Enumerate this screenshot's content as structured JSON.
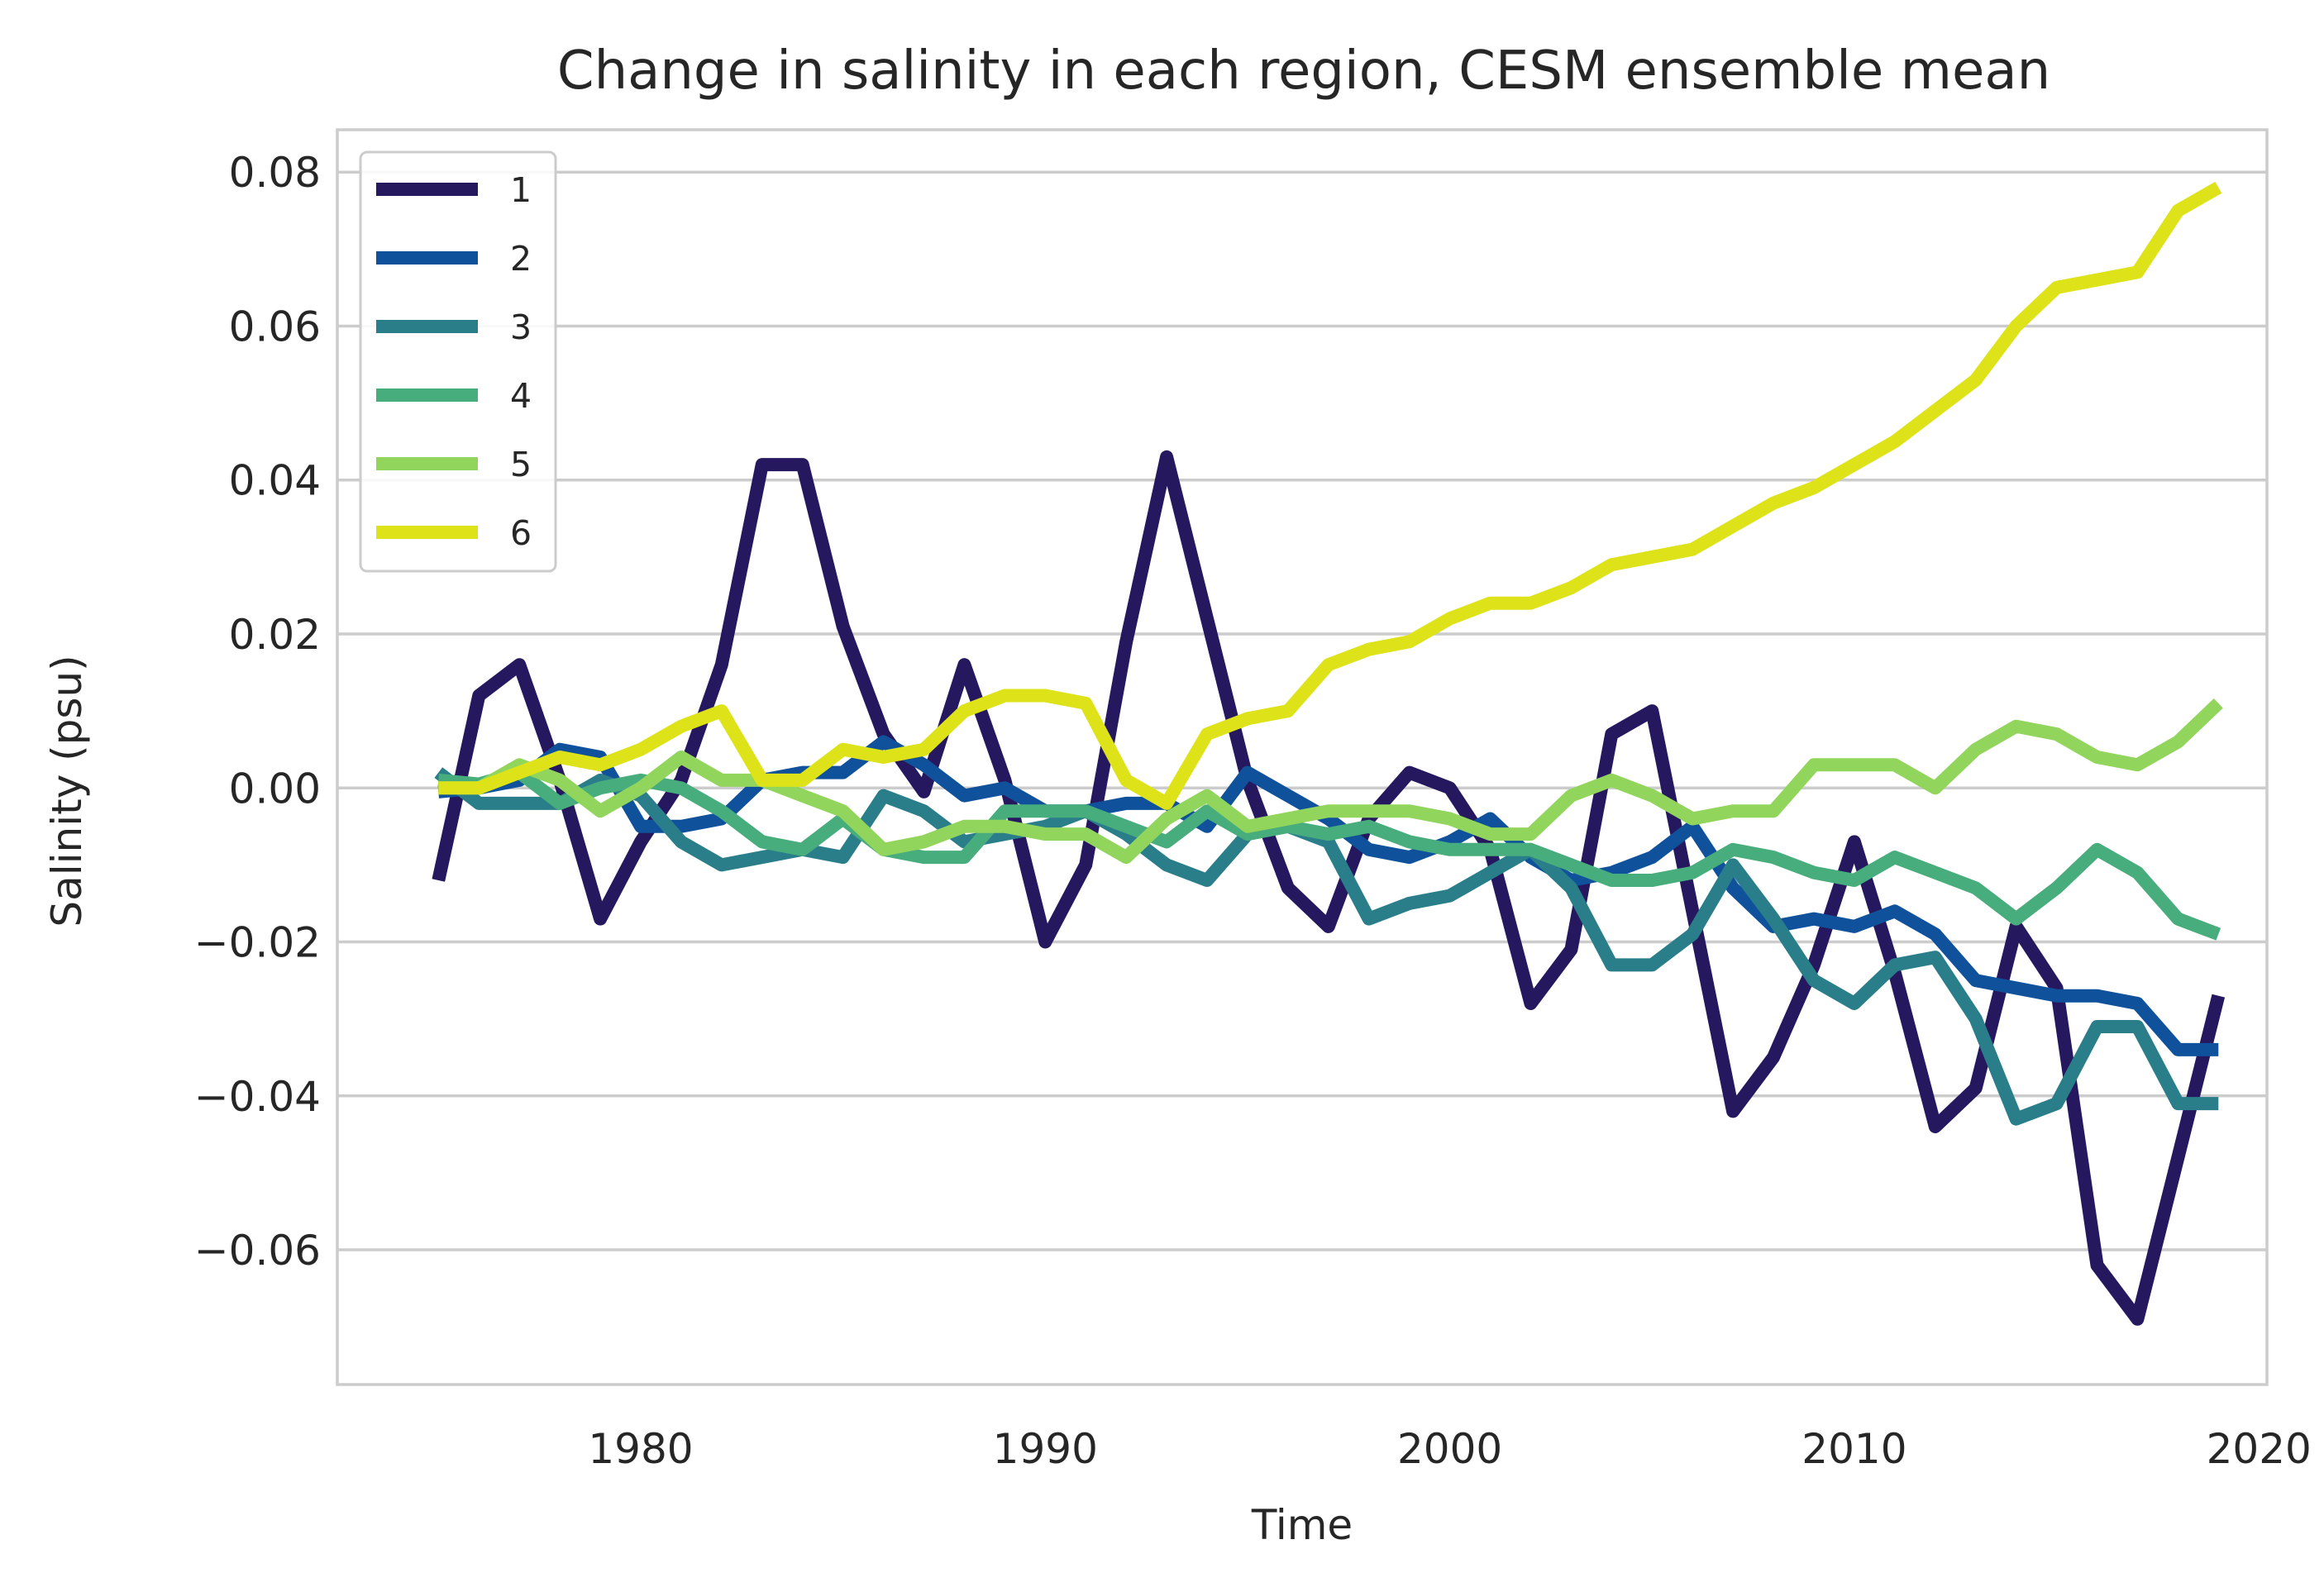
{
  "chart_data": {
    "type": "line",
    "title": "Change in salinity in each region, CESM ensemble mean",
    "xlabel": "Time",
    "ylabel": "Salinity (psu)",
    "xlim": [
      1972.5,
      2020.2
    ],
    "ylim": [
      -0.0775,
      0.0855
    ],
    "xticks": [
      1980,
      1990,
      2000,
      2010,
      2020
    ],
    "xtick_labels": [
      "1980",
      "1990",
      "2000",
      "2010",
      "2020"
    ],
    "yticks": [
      -0.06,
      -0.04,
      -0.02,
      0.0,
      0.02,
      0.04,
      0.06,
      0.08
    ],
    "ytick_labels": [
      "−0.06",
      "−0.04",
      "−0.02",
      "0.00",
      "0.02",
      "0.04",
      "0.06",
      "0.08"
    ],
    "grid": "horizontal",
    "legend_position": "top-left",
    "x": [
      1975,
      1976,
      1977,
      1978,
      1979,
      1980,
      1981,
      1982,
      1983,
      1984,
      1985,
      1986,
      1987,
      1988,
      1989,
      1990,
      1991,
      1992,
      1993,
      1994,
      1995,
      1996,
      1997,
      1998,
      1999,
      2000,
      2001,
      2002,
      2003,
      2004,
      2005,
      2006,
      2007,
      2008,
      2009,
      2010,
      2011,
      2012,
      2013,
      2014,
      2015,
      2016,
      2017,
      2018,
      2019
    ],
    "series": [
      {
        "name": "1",
        "color": "#26185f",
        "values": [
          -0.012,
          0.012,
          0.016,
          0.001,
          -0.017,
          -0.007,
          0.001,
          0.016,
          0.042,
          0.042,
          0.021,
          0.007,
          -0.0005,
          0.016,
          0.001,
          -0.02,
          -0.01,
          0.019,
          0.043,
          0.022,
          0.001,
          -0.013,
          -0.018,
          -0.004,
          0.002,
          0.0,
          -0.008,
          -0.028,
          -0.021,
          0.007,
          0.01,
          -0.016,
          -0.042,
          -0.035,
          -0.023,
          -0.007,
          -0.024,
          -0.044,
          -0.039,
          -0.018,
          -0.026,
          -0.062,
          -0.069,
          -0.048,
          -0.027
        ]
      },
      {
        "name": "2",
        "color": "#0f529b",
        "values": [
          -0.0005,
          0.0,
          0.001,
          0.005,
          0.004,
          -0.005,
          -0.005,
          -0.004,
          0.001,
          0.002,
          0.002,
          0.006,
          0.003,
          -0.001,
          0.0,
          -0.003,
          -0.003,
          -0.002,
          -0.002,
          -0.005,
          0.002,
          -0.001,
          -0.004,
          -0.008,
          -0.009,
          -0.007,
          -0.004,
          -0.009,
          -0.012,
          -0.011,
          -0.009,
          -0.005,
          -0.013,
          -0.018,
          -0.017,
          -0.018,
          -0.016,
          -0.019,
          -0.025,
          -0.026,
          -0.027,
          -0.027,
          -0.028,
          -0.034,
          -0.034
        ]
      },
      {
        "name": "3",
        "color": "#2a7e8a",
        "values": [
          0.002,
          -0.002,
          -0.002,
          -0.002,
          0.001,
          -0.001,
          -0.007,
          -0.01,
          -0.009,
          -0.008,
          -0.009,
          -0.001,
          -0.003,
          -0.007,
          -0.006,
          -0.005,
          -0.003,
          -0.006,
          -0.01,
          -0.012,
          -0.006,
          -0.005,
          -0.007,
          -0.017,
          -0.015,
          -0.014,
          -0.011,
          -0.008,
          -0.013,
          -0.023,
          -0.023,
          -0.019,
          -0.01,
          -0.017,
          -0.025,
          -0.028,
          -0.023,
          -0.022,
          -0.03,
          -0.043,
          -0.041,
          -0.031,
          -0.031,
          -0.041,
          -0.041
        ]
      },
      {
        "name": "4",
        "color": "#48ad7c",
        "values": [
          0.001,
          0.0005,
          0.002,
          -0.002,
          0.0,
          0.001,
          0.0,
          -0.003,
          -0.007,
          -0.008,
          -0.004,
          -0.008,
          -0.009,
          -0.009,
          -0.003,
          -0.003,
          -0.003,
          -0.005,
          -0.007,
          -0.003,
          -0.006,
          -0.005,
          -0.006,
          -0.005,
          -0.007,
          -0.008,
          -0.008,
          -0.008,
          -0.01,
          -0.012,
          -0.012,
          -0.011,
          -0.008,
          -0.009,
          -0.011,
          -0.012,
          -0.009,
          -0.011,
          -0.013,
          -0.017,
          -0.013,
          -0.008,
          -0.011,
          -0.017,
          -0.019
        ]
      },
      {
        "name": "5",
        "color": "#92d55c",
        "values": [
          0.0,
          0.0,
          0.003,
          0.001,
          -0.003,
          0.0,
          0.004,
          0.001,
          0.001,
          -0.001,
          -0.003,
          -0.008,
          -0.007,
          -0.005,
          -0.005,
          -0.006,
          -0.006,
          -0.009,
          -0.004,
          -0.001,
          -0.005,
          -0.004,
          -0.003,
          -0.003,
          -0.003,
          -0.004,
          -0.006,
          -0.006,
          -0.001,
          0.001,
          -0.001,
          -0.004,
          -0.003,
          -0.003,
          0.003,
          0.003,
          0.003,
          0.0,
          0.005,
          0.008,
          0.007,
          0.004,
          0.003,
          0.006,
          0.011
        ]
      },
      {
        "name": "6",
        "color": "#dde318",
        "values": [
          0.0,
          0.0,
          0.002,
          0.004,
          0.003,
          0.005,
          0.008,
          0.01,
          0.001,
          0.001,
          0.005,
          0.004,
          0.005,
          0.01,
          0.012,
          0.012,
          0.011,
          0.001,
          -0.002,
          0.007,
          0.009,
          0.01,
          0.016,
          0.018,
          0.019,
          0.022,
          0.024,
          0.024,
          0.026,
          0.029,
          0.03,
          0.031,
          0.034,
          0.037,
          0.039,
          0.042,
          0.045,
          0.049,
          0.053,
          0.06,
          0.065,
          0.066,
          0.067,
          0.075,
          0.078
        ]
      }
    ]
  }
}
